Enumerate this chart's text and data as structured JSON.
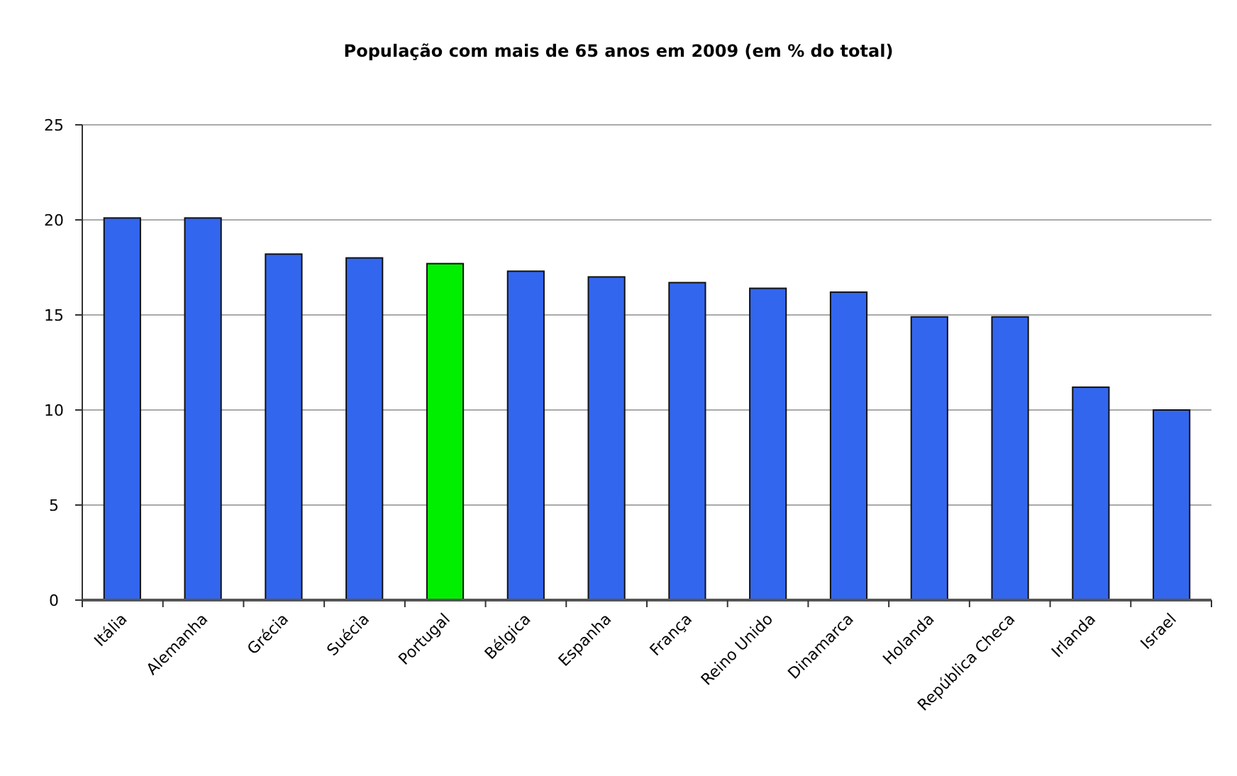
{
  "chart_data": {
    "type": "bar",
    "title": "População com mais de 65 anos em 2009 (em % do total)",
    "categories": [
      "Itália",
      "Alemanha",
      "Grécia",
      "Suécia",
      "Portugal",
      "Bélgica",
      "Espanha",
      "França",
      "Reino Unido",
      "Dinamarca",
      "Holanda",
      "República Checa",
      "Irlanda",
      "Israel"
    ],
    "values": [
      20.1,
      20.1,
      18.2,
      18.0,
      17.7,
      17.3,
      17.0,
      16.7,
      16.4,
      16.2,
      14.9,
      14.9,
      11.2,
      10.0
    ],
    "colors": [
      "#3366ee",
      "#3366ee",
      "#3366ee",
      "#3366ee",
      "#00ee00",
      "#3366ee",
      "#3366ee",
      "#3366ee",
      "#3366ee",
      "#3366ee",
      "#3366ee",
      "#3366ee",
      "#3366ee",
      "#3366ee"
    ],
    "ylim": [
      0,
      25
    ],
    "yticks": [
      0,
      5,
      10,
      15,
      20,
      25
    ],
    "grid": "y"
  }
}
